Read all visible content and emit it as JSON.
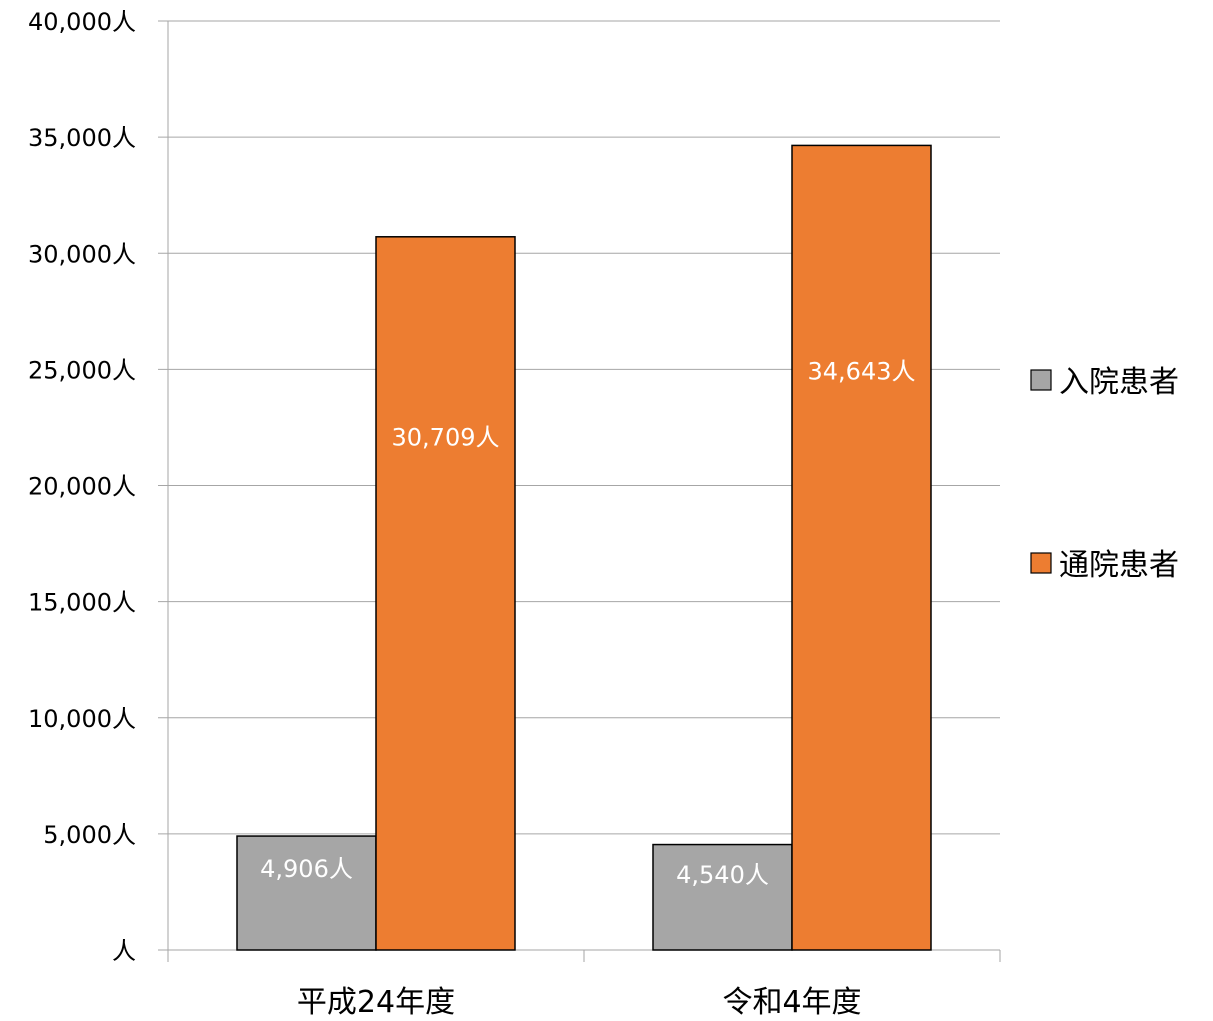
{
  "chart_data": {
    "type": "bar",
    "categories": [
      "平成24年度",
      "令和4年度"
    ],
    "series": [
      {
        "name": "入院患者",
        "values": [
          4906,
          4540
        ],
        "labels": [
          "4,906人",
          "4,540人"
        ],
        "color": "#a6a6a6"
      },
      {
        "name": "通院患者",
        "values": [
          30709,
          34643
        ],
        "labels": [
          "30,709人",
          "34,643人"
        ],
        "color": "#ed7d31"
      }
    ],
    "ylim": [
      0,
      40000
    ],
    "yticks": [
      0,
      5000,
      10000,
      15000,
      20000,
      25000,
      30000,
      35000,
      40000
    ],
    "ytick_labels": [
      "人",
      "5,000人",
      "10,000人",
      "15,000人",
      "20,000人",
      "25,000人",
      "30,000人",
      "35,000人",
      "40,000人"
    ],
    "title": "",
    "xlabel": "",
    "ylabel": "",
    "grid": true,
    "legend_position": "right",
    "gridline_color": "#a6a6a6",
    "bar_stroke_color": "#000000"
  }
}
